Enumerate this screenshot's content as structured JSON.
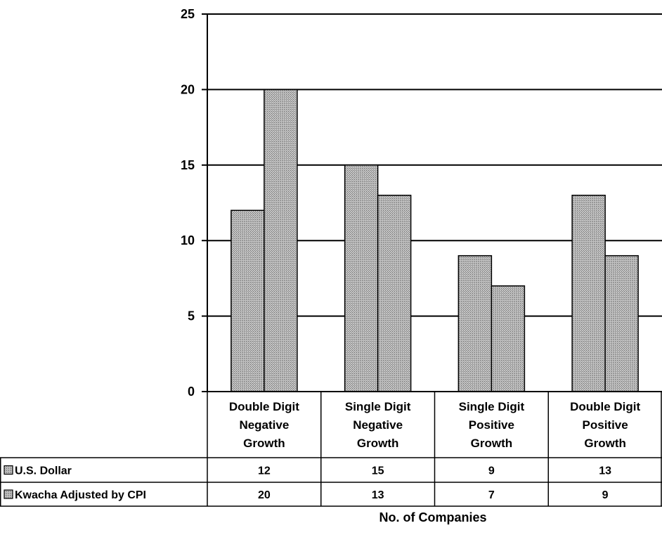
{
  "chart_data": {
    "type": "bar",
    "categories": [
      [
        "Double Digit",
        "Negative",
        "Growth"
      ],
      [
        "Single Digit",
        "Negative",
        "Growth"
      ],
      [
        "Single Digit",
        "Positive",
        "Growth"
      ],
      [
        "Double Digit",
        "Positive",
        "Growth"
      ]
    ],
    "series": [
      {
        "name": "U.S. Dollar",
        "values": [
          12,
          15,
          9,
          13
        ]
      },
      {
        "name": "Kwacha Adjusted by CPI",
        "values": [
          20,
          13,
          7,
          9
        ]
      }
    ],
    "data_table": {
      "rows": [
        {
          "name": "U.S. Dollar",
          "cells": [
            "12",
            "15",
            "9",
            "13"
          ]
        },
        {
          "name": "Kwacha Adjusted by CPI",
          "cells": [
            "20",
            "13",
            "7",
            "9"
          ]
        }
      ]
    },
    "xlabel": "No. of Companies",
    "ylim": [
      0,
      25
    ],
    "yticks": [
      0,
      5,
      10,
      15,
      20,
      25
    ],
    "grid": true,
    "legend": "data-table",
    "colors": {
      "bar_fill": "#b4b4b4",
      "hatch": "#7a7a7a",
      "line": "#000000",
      "background": "#ffffff"
    }
  }
}
